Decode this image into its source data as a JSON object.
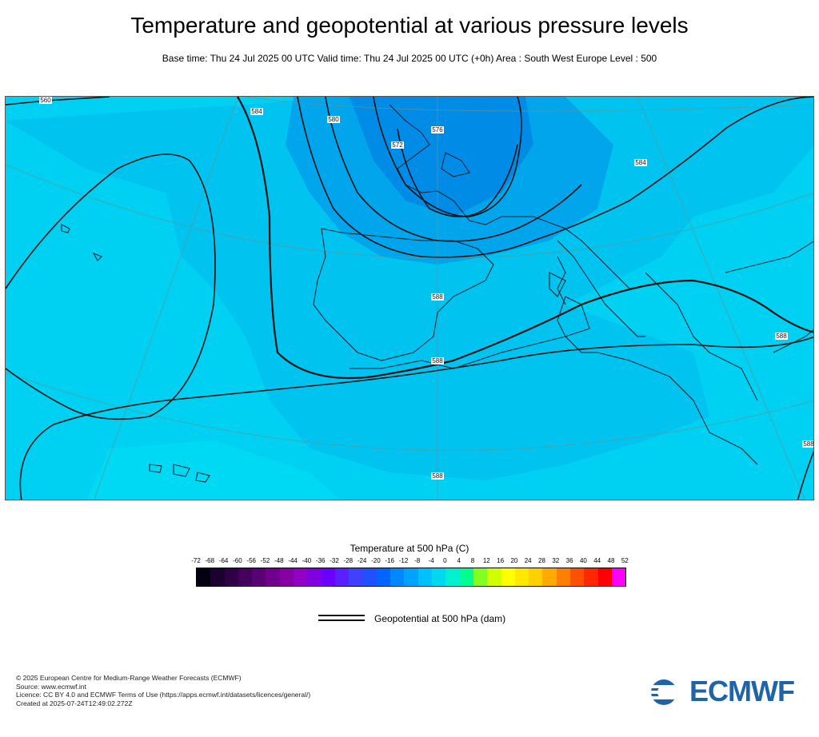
{
  "title": "Temperature and geopotential at various pressure levels",
  "subtitle": "Base time: Thu 24 Jul 2025 00 UTC Valid time: Thu 24 Jul 2025 00 UTC (+0h) Area : South West Europe Level : 500",
  "map": {
    "region": "South West Europe",
    "contour_labels": [
      "560",
      "572",
      "576",
      "580",
      "584",
      "588",
      "588",
      "588",
      "588",
      "584",
      "584",
      "588",
      "588"
    ],
    "colors": {
      "cyan": "#00d0f2",
      "light_blue": "#00b8ee",
      "mid_blue": "#0099ea",
      "deep_blue": "#0080e6",
      "land_outline": "#1b2a38",
      "contour": "#111111"
    }
  },
  "legend": {
    "title": "Temperature at 500 hPa (C)",
    "ticks": [
      "-72",
      "-68",
      "-64",
      "-60",
      "-56",
      "-52",
      "-48",
      "-44",
      "-40",
      "-36",
      "-32",
      "-28",
      "-24",
      "-20",
      "-16",
      "-12",
      "-8",
      "-4",
      "0",
      "4",
      "8",
      "12",
      "16",
      "20",
      "24",
      "28",
      "32",
      "36",
      "40",
      "44",
      "48",
      "52"
    ],
    "colors": [
      "#050011",
      "#1c0030",
      "#300047",
      "#45005e",
      "#5a0075",
      "#70008c",
      "#8600a3",
      "#9200c6",
      "#8200e0",
      "#6a00ff",
      "#5a20ff",
      "#4040ff",
      "#2050ff",
      "#0066ff",
      "#0088ff",
      "#00a4ff",
      "#00c0ff",
      "#00d8f0",
      "#00f0d0",
      "#00ff90",
      "#80ff20",
      "#d0ff00",
      "#ffff00",
      "#ffe800",
      "#ffd000",
      "#ffaa00",
      "#ff8000",
      "#ff5000",
      "#ff2800",
      "#ff0000",
      "#ff00ff"
    ],
    "geopotential_label": "Geopotential at 500 hPa (dam)"
  },
  "footer": {
    "line1": "© 2025 European Centre for Medium-Range Weather Forecasts (ECMWF)",
    "line2": "Source: www.ecmwf.int",
    "line3": "Licence: CC BY 4.0 and ECMWF Terms of Use (https://apps.ecmwf.int/datasets/licences/general/)",
    "line4": "Created at 2025-07-24T12:49:02.272Z"
  },
  "logo": {
    "text": "ECMWF",
    "color": "#1f63a8"
  }
}
